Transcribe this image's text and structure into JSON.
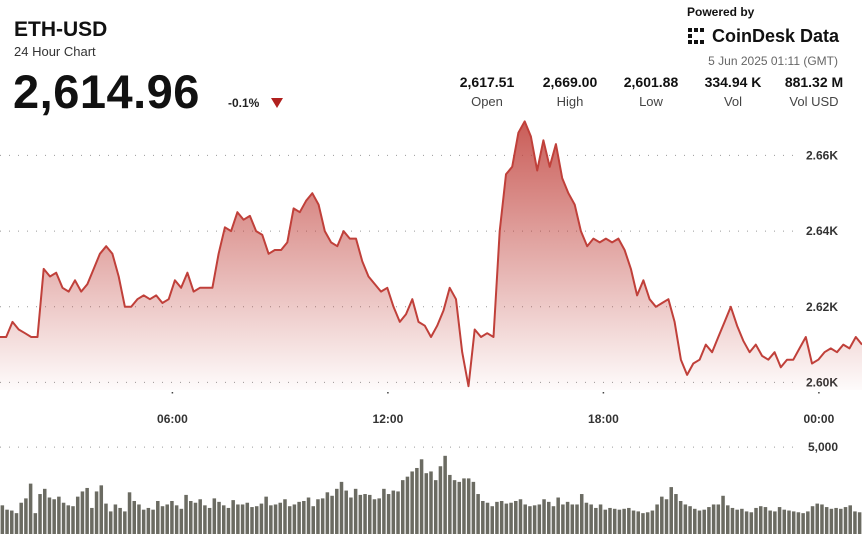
{
  "header": {
    "ticker": "ETH-USD",
    "subtitle": "24 Hour Chart",
    "price": "2,614.96",
    "change": "-0.1%",
    "powered_by": "Powered by",
    "brand": "CoinDesk Data",
    "timestamp": "5 Jun 2025 01:11 (GMT)"
  },
  "stats": [
    {
      "value": "2,617.51",
      "label": "Open"
    },
    {
      "value": "2,669.00",
      "label": "High"
    },
    {
      "value": "2,601.88",
      "label": "Low"
    },
    {
      "value": "334.94 K",
      "label": "Vol"
    },
    {
      "value": "881.32 M",
      "label": "Vol USD"
    }
  ],
  "colors": {
    "line": "#c0403a",
    "area_top": "#c0403a",
    "volume_bar": "#6b6b62",
    "down_arrow": "#b0201e"
  },
  "icons": {
    "brand_logo": "coindesk-logo-icon",
    "change_direction": "down-triangle-icon"
  },
  "chart_data": [
    {
      "type": "area",
      "series": [
        {
          "name": "ETH-USD",
          "values": [
            2612,
            2612,
            2616,
            2614,
            2613,
            2612,
            2612,
            2630,
            2628,
            2629,
            2625,
            2624,
            2627,
            2624,
            2626,
            2630,
            2634,
            2636,
            2634,
            2628,
            2620,
            2620,
            2622,
            2623,
            2622,
            2623,
            2621,
            2622,
            2627,
            2625,
            2629,
            2624,
            2625,
            2625,
            2625,
            2634,
            2641,
            2640,
            2645,
            2643,
            2644,
            2640,
            2639,
            2634,
            2635,
            2635,
            2637,
            2646,
            2645,
            2648,
            2650,
            2647,
            2640,
            2637,
            2636,
            2640,
            2638,
            2638,
            2632,
            2628,
            2626,
            2624,
            2625,
            2620,
            2616,
            2618,
            2622,
            2616,
            2615,
            2612,
            2615,
            2619,
            2625,
            2622,
            2608,
            2599,
            2614,
            2612,
            2613,
            2612,
            2640,
            2655,
            2657,
            2666,
            2669,
            2665,
            2656,
            2664,
            2657,
            2663,
            2654,
            2650,
            2647,
            2640,
            2636,
            2638,
            2637,
            2638,
            2637,
            2638,
            2635,
            2630,
            2623,
            2627,
            2622,
            2620,
            2621,
            2622,
            2616,
            2606,
            2602,
            2605,
            2606,
            2610,
            2608,
            2612,
            2616,
            2620,
            2615,
            2611,
            2608,
            2610,
            2607,
            2606,
            2608,
            2604,
            2606,
            2606,
            2609,
            2612,
            2605,
            2606,
            2608,
            2609,
            2608,
            2610,
            2609,
            2612,
            2610
          ]
        }
      ],
      "ylim": [
        2598,
        2672
      ],
      "yticks": [
        "2.66K",
        "2.64K",
        "2.62K",
        "2.60K"
      ],
      "ytick_values": [
        2660,
        2640,
        2620,
        2600
      ],
      "xticks": [
        "06:00",
        "12:00",
        "18:00",
        "00:00"
      ],
      "xtick_hours": [
        6,
        12,
        18,
        24
      ],
      "x_start_hour": 1.2,
      "x_end_hour": 25.2,
      "grid": true
    },
    {
      "type": "bar",
      "series": [
        {
          "name": "Vol",
          "values": [
            1650,
            1400,
            1350,
            1200,
            1800,
            2050,
            2900,
            1200,
            2300,
            2600,
            2100,
            2000,
            2150,
            1800,
            1650,
            1600,
            2150,
            2450,
            2650,
            1500,
            2450,
            2800,
            1750,
            1300,
            1700,
            1500,
            1300,
            2400,
            1900,
            1700,
            1400,
            1500,
            1400,
            1900,
            1600,
            1700,
            1900,
            1650,
            1450,
            2250,
            1900,
            1800,
            2000,
            1650,
            1500,
            2050,
            1850,
            1650,
            1500,
            1950,
            1700,
            1700,
            1800,
            1550,
            1600,
            1750,
            2150,
            1650,
            1700,
            1800,
            2000,
            1600,
            1700,
            1850,
            1900,
            2100,
            1600,
            2000,
            2050,
            2400,
            2200,
            2600,
            3000,
            2500,
            2100,
            2600,
            2250,
            2300,
            2250,
            2000,
            2050,
            2600,
            2300,
            2500,
            2450,
            3100,
            3300,
            3600,
            3800,
            4300,
            3500,
            3600,
            3100,
            3900,
            4500,
            3400,
            3100,
            3000,
            3200,
            3200,
            3000,
            2300,
            1900,
            1800,
            1600,
            1850,
            1900,
            1750,
            1800,
            1900,
            2000,
            1700,
            1600,
            1650,
            1700,
            2000,
            1850,
            1600,
            2100,
            1700,
            1850,
            1700,
            1700,
            2300,
            1800,
            1700,
            1500,
            1700,
            1400,
            1500,
            1450,
            1400,
            1450,
            1500,
            1350,
            1300,
            1200,
            1250,
            1350,
            1700,
            2150,
            2000,
            2700,
            2300,
            1900,
            1700,
            1600,
            1450,
            1350,
            1400,
            1550,
            1700,
            1700,
            2200,
            1650,
            1500,
            1400,
            1450,
            1300,
            1250,
            1500,
            1600,
            1550,
            1350,
            1300,
            1550,
            1400,
            1350,
            1300,
            1250,
            1200,
            1300,
            1600,
            1750,
            1700,
            1550,
            1450,
            1500,
            1450,
            1550,
            1650,
            1300,
            1250
          ]
        }
      ],
      "yticks": [
        "5,000"
      ],
      "ytick_values": [
        5000
      ],
      "ylim": [
        0,
        8000
      ]
    }
  ]
}
